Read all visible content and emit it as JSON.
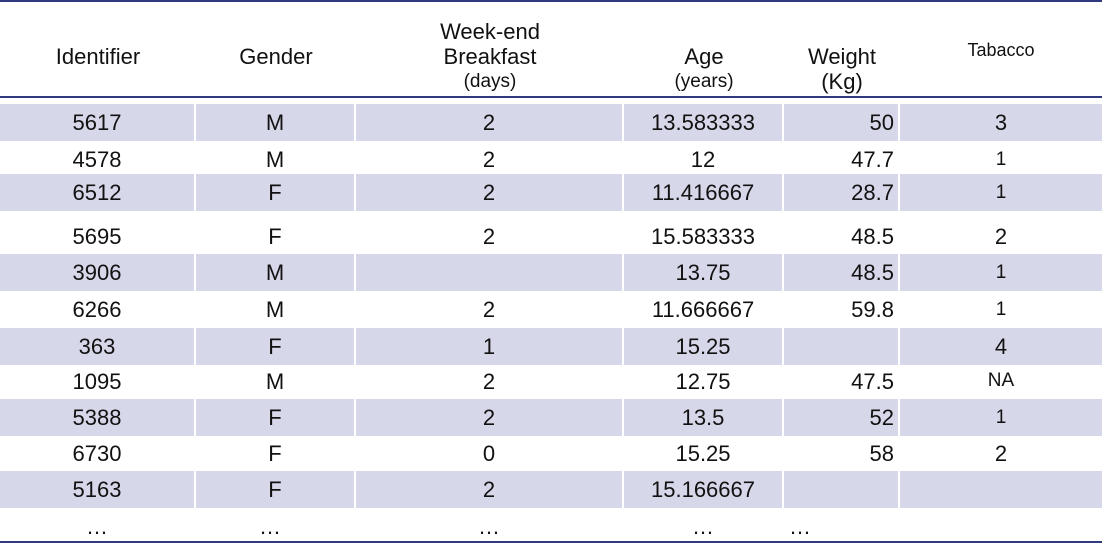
{
  "table": {
    "headers": {
      "identifier": "Identifier",
      "gender": "Gender",
      "breakfast_line1": "Week-end",
      "breakfast_line2": "Breakfast",
      "breakfast_unit": "(days)",
      "age": "Age",
      "age_unit": "(years)",
      "weight": "Weight",
      "weight_unit": "(Kg)",
      "tobacco": "Tabacco"
    },
    "rows": [
      {
        "identifier": "5617",
        "gender": "M",
        "breakfast": "2",
        "age": "13.583333",
        "weight": "50",
        "tobacco": "3"
      },
      {
        "identifier": "4578",
        "gender": "M",
        "breakfast": "2",
        "age": "12",
        "weight": "47.7",
        "tobacco": "1"
      },
      {
        "identifier": "6512",
        "gender": "F",
        "breakfast": "2",
        "age": "11.416667",
        "weight": "28.7",
        "tobacco": "1"
      },
      {
        "identifier": "5695",
        "gender": "F",
        "breakfast": "2",
        "age": "15.583333",
        "weight": "48.5",
        "tobacco": "2"
      },
      {
        "identifier": "3906",
        "gender": "M",
        "breakfast": "",
        "age": "13.75",
        "weight": "48.5",
        "tobacco": "1"
      },
      {
        "identifier": "6266",
        "gender": "M",
        "breakfast": "2",
        "age": "11.666667",
        "weight": "59.8",
        "tobacco": "1"
      },
      {
        "identifier": "363",
        "gender": "F",
        "breakfast": "1",
        "age": "15.25",
        "weight": "",
        "tobacco": "4"
      },
      {
        "identifier": "1095",
        "gender": "M",
        "breakfast": "2",
        "age": "12.75",
        "weight": "47.5",
        "tobacco": "NA"
      },
      {
        "identifier": "5388",
        "gender": "F",
        "breakfast": "2",
        "age": "13.5",
        "weight": "52",
        "tobacco": "1"
      },
      {
        "identifier": "6730",
        "gender": "F",
        "breakfast": "0",
        "age": "15.25",
        "weight": "58",
        "tobacco": "2"
      },
      {
        "identifier": "5163",
        "gender": "F",
        "breakfast": "2",
        "age": "15.166667",
        "weight": "",
        "tobacco": ""
      }
    ],
    "ellipsis": {
      "identifier": "…",
      "gender": "…",
      "breakfast": "…",
      "age": "…",
      "weight": "…"
    },
    "colors": {
      "shaded_row": "#d7d7ea",
      "rule": "#2e3a7d"
    }
  }
}
